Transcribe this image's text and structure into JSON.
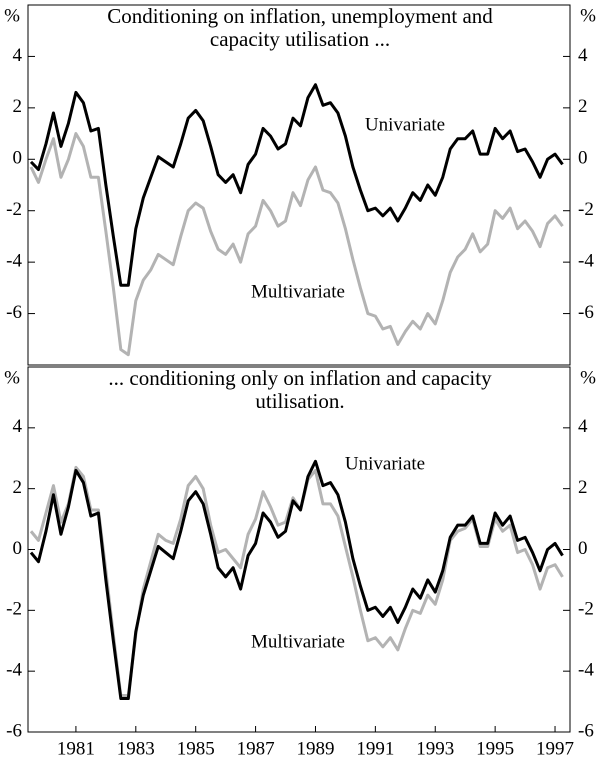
{
  "chart_data": [
    {
      "type": "line",
      "title": [
        "Conditioning on inflation, unemployment and",
        "capacity utilisation ..."
      ],
      "y_label": "%",
      "xlim": [
        1979.9,
        1998
      ],
      "ylim": [
        -8,
        6
      ],
      "yticks": [
        -6,
        -4,
        -2,
        0,
        2,
        4
      ],
      "x": [
        1980,
        1980.25,
        1980.5,
        1980.75,
        1981,
        1981.25,
        1981.5,
        1981.75,
        1982,
        1982.25,
        1982.5,
        1982.75,
        1983,
        1983.25,
        1983.5,
        1983.75,
        1984,
        1984.25,
        1984.5,
        1984.75,
        1985,
        1985.25,
        1985.5,
        1985.75,
        1986,
        1986.25,
        1986.5,
        1986.75,
        1987,
        1987.25,
        1987.5,
        1987.75,
        1988,
        1988.25,
        1988.5,
        1988.75,
        1989,
        1989.25,
        1989.5,
        1989.75,
        1990,
        1990.25,
        1990.5,
        1990.75,
        1991,
        1991.25,
        1991.5,
        1991.75,
        1992,
        1992.25,
        1992.5,
        1992.75,
        1993,
        1993.25,
        1993.5,
        1993.75,
        1994,
        1994.25,
        1994.5,
        1994.75,
        1995,
        1995.25,
        1995.5,
        1995.75,
        1996,
        1996.25,
        1996.5,
        1996.75,
        1997,
        1997.25,
        1997.5,
        1997.75
      ],
      "series": [
        {
          "name": "Multivariate",
          "color": "#b3b3b3",
          "values": [
            -0.3,
            -0.9,
            0.0,
            0.8,
            -0.7,
            0.0,
            1.0,
            0.5,
            -0.7,
            -0.7,
            -2.8,
            -5.0,
            -7.4,
            -7.6,
            -5.5,
            -4.7,
            -4.3,
            -3.7,
            -3.9,
            -4.1,
            -3.0,
            -2.0,
            -1.7,
            -1.9,
            -2.8,
            -3.5,
            -3.7,
            -3.3,
            -4.0,
            -2.9,
            -2.6,
            -1.6,
            -2.0,
            -2.6,
            -2.4,
            -1.3,
            -1.8,
            -0.8,
            -0.3,
            -1.2,
            -1.3,
            -1.7,
            -2.7,
            -3.9,
            -5.0,
            -6.0,
            -6.1,
            -6.6,
            -6.5,
            -7.2,
            -6.7,
            -6.3,
            -6.6,
            -6.0,
            -6.4,
            -5.5,
            -4.4,
            -3.8,
            -3.5,
            -2.9,
            -3.6,
            -3.3,
            -2.0,
            -2.3,
            -1.9,
            -2.7,
            -2.4,
            -2.8,
            -3.4,
            -2.5,
            -2.2,
            -2.6
          ]
        },
        {
          "name": "Univariate",
          "color": "#000000",
          "values": [
            -0.1,
            -0.4,
            0.6,
            1.8,
            0.5,
            1.4,
            2.6,
            2.2,
            1.1,
            1.2,
            -1.0,
            -3.0,
            -4.9,
            -4.9,
            -2.7,
            -1.5,
            -0.7,
            0.1,
            -0.1,
            -0.3,
            0.6,
            1.6,
            1.9,
            1.5,
            0.5,
            -0.6,
            -0.9,
            -0.6,
            -1.3,
            -0.2,
            0.2,
            1.2,
            0.9,
            0.4,
            0.6,
            1.6,
            1.3,
            2.4,
            2.9,
            2.1,
            2.2,
            1.8,
            0.9,
            -0.3,
            -1.2,
            -2.0,
            -1.9,
            -2.2,
            -1.9,
            -2.4,
            -1.9,
            -1.3,
            -1.6,
            -1.0,
            -1.4,
            -0.7,
            0.4,
            0.8,
            0.8,
            1.1,
            0.2,
            0.2,
            1.2,
            0.8,
            1.1,
            0.3,
            0.4,
            -0.1,
            -0.7,
            0.0,
            0.2,
            -0.2
          ]
        }
      ]
    },
    {
      "type": "line",
      "title": [
        "... conditioning only on inflation and capacity",
        "utilisation."
      ],
      "y_label": "%",
      "xlim": [
        1979.9,
        1998
      ],
      "ylim": [
        -6,
        6
      ],
      "yticks": [
        -6,
        -4,
        -2,
        0,
        2,
        4
      ],
      "xticks": [
        {
          "value": 1981.5,
          "label": "1981"
        },
        {
          "value": 1983.5,
          "label": "1983"
        },
        {
          "value": 1985.5,
          "label": "1985"
        },
        {
          "value": 1987.5,
          "label": "1987"
        },
        {
          "value": 1989.5,
          "label": "1989"
        },
        {
          "value": 1991.5,
          "label": "1991"
        },
        {
          "value": 1993.5,
          "label": "1993"
        },
        {
          "value": 1995.5,
          "label": "1995"
        },
        {
          "value": 1997.5,
          "label": "1997"
        }
      ],
      "x": [
        1980,
        1980.25,
        1980.5,
        1980.75,
        1981,
        1981.25,
        1981.5,
        1981.75,
        1982,
        1982.25,
        1982.5,
        1982.75,
        1983,
        1983.25,
        1983.5,
        1983.75,
        1984,
        1984.25,
        1984.5,
        1984.75,
        1985,
        1985.25,
        1985.5,
        1985.75,
        1986,
        1986.25,
        1986.5,
        1986.75,
        1987,
        1987.25,
        1987.5,
        1987.75,
        1988,
        1988.25,
        1988.5,
        1988.75,
        1989,
        1989.25,
        1989.5,
        1989.75,
        1990,
        1990.25,
        1990.5,
        1990.75,
        1991,
        1991.25,
        1991.5,
        1991.75,
        1992,
        1992.25,
        1992.5,
        1992.75,
        1993,
        1993.25,
        1993.5,
        1993.75,
        1994,
        1994.25,
        1994.5,
        1994.75,
        1995,
        1995.25,
        1995.5,
        1995.75,
        1996,
        1996.25,
        1996.5,
        1996.75,
        1997,
        1997.25,
        1997.5,
        1997.75
      ],
      "series": [
        {
          "name": "Multivariate",
          "color": "#b3b3b3",
          "values": [
            0.6,
            0.3,
            1.2,
            2.1,
            0.9,
            1.5,
            2.7,
            2.4,
            1.3,
            1.3,
            -0.7,
            -2.8,
            -4.8,
            -4.8,
            -2.8,
            -1.3,
            -0.4,
            0.5,
            0.3,
            0.2,
            1.0,
            2.1,
            2.4,
            2.0,
            0.8,
            -0.1,
            0.0,
            -0.3,
            -0.6,
            0.5,
            1.0,
            1.9,
            1.4,
            0.8,
            0.9,
            1.7,
            1.3,
            2.3,
            2.6,
            1.5,
            1.5,
            1.1,
            0.1,
            -0.9,
            -2.0,
            -3.0,
            -2.9,
            -3.2,
            -2.9,
            -3.3,
            -2.6,
            -2.0,
            -2.1,
            -1.5,
            -1.8,
            -1.0,
            0.3,
            0.6,
            0.7,
            1.0,
            0.1,
            0.1,
            1.0,
            0.6,
            0.8,
            -0.1,
            0.0,
            -0.5,
            -1.3,
            -0.6,
            -0.5,
            -0.9
          ]
        },
        {
          "name": "Univariate",
          "color": "#000000",
          "values": [
            -0.1,
            -0.4,
            0.6,
            1.8,
            0.5,
            1.4,
            2.6,
            2.2,
            1.1,
            1.2,
            -1.0,
            -3.0,
            -4.9,
            -4.9,
            -2.7,
            -1.5,
            -0.7,
            0.1,
            -0.1,
            -0.3,
            0.6,
            1.6,
            1.9,
            1.5,
            0.5,
            -0.6,
            -0.9,
            -0.6,
            -1.3,
            -0.2,
            0.2,
            1.2,
            0.9,
            0.4,
            0.6,
            1.6,
            1.3,
            2.4,
            2.9,
            2.1,
            2.2,
            1.8,
            0.9,
            -0.3,
            -1.2,
            -2.0,
            -1.9,
            -2.2,
            -1.9,
            -2.4,
            -1.9,
            -1.3,
            -1.6,
            -1.0,
            -1.4,
            -0.7,
            0.4,
            0.8,
            0.8,
            1.1,
            0.2,
            0.2,
            1.2,
            0.8,
            1.1,
            0.3,
            0.4,
            -0.1,
            -0.7,
            0.0,
            0.2,
            -0.2
          ]
        }
      ]
    }
  ]
}
